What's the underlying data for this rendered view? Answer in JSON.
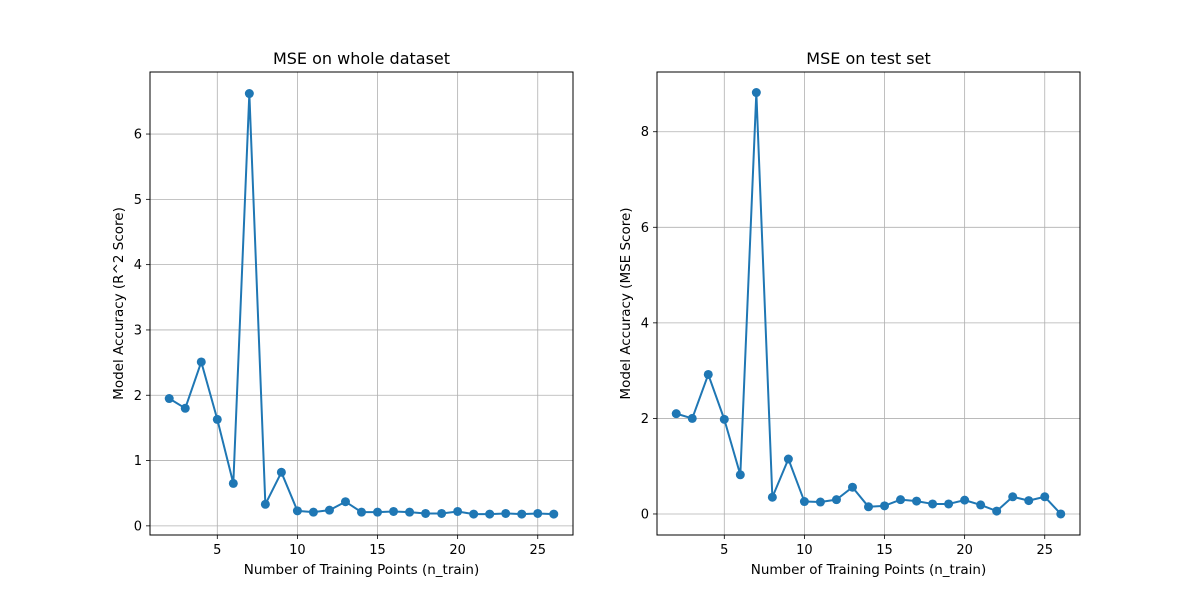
{
  "chart_data": [
    {
      "type": "line",
      "title": "MSE on whole dataset",
      "xlabel": "Number of Training Points (n_train)",
      "ylabel": "Model Accuracy (R^2 Score)",
      "xlim": [
        0.8,
        27.2
      ],
      "ylim": [
        -0.14,
        6.95
      ],
      "xticks": [
        5,
        10,
        15,
        20,
        25
      ],
      "yticks": [
        0,
        1,
        2,
        3,
        4,
        5,
        6
      ],
      "grid": true,
      "color": "#1f77b4",
      "x": [
        2,
        3,
        4,
        5,
        6,
        7,
        8,
        9,
        10,
        11,
        12,
        13,
        14,
        15,
        16,
        17,
        18,
        19,
        20,
        21,
        22,
        23,
        24,
        25,
        26
      ],
      "y": [
        1.95,
        1.8,
        2.51,
        1.63,
        0.65,
        6.62,
        0.33,
        0.82,
        0.23,
        0.21,
        0.24,
        0.37,
        0.21,
        0.21,
        0.22,
        0.21,
        0.19,
        0.19,
        0.22,
        0.18,
        0.18,
        0.19,
        0.18,
        0.19,
        0.18
      ]
    },
    {
      "type": "line",
      "title": "MSE on test set",
      "xlabel": "Number of Training Points (n_train)",
      "ylabel": "Model Accuracy (MSE Score)",
      "xlim": [
        0.8,
        27.2
      ],
      "ylim": [
        -0.44,
        9.25
      ],
      "xticks": [
        5,
        10,
        15,
        20,
        25
      ],
      "yticks": [
        0,
        2,
        4,
        6,
        8
      ],
      "grid": true,
      "color": "#1f77b4",
      "x": [
        2,
        3,
        4,
        5,
        6,
        7,
        8,
        9,
        10,
        11,
        12,
        13,
        14,
        15,
        16,
        17,
        18,
        19,
        20,
        21,
        22,
        23,
        24,
        25,
        26
      ],
      "y": [
        2.1,
        2.0,
        2.92,
        1.98,
        0.82,
        8.82,
        0.35,
        1.15,
        0.26,
        0.25,
        0.3,
        0.56,
        0.15,
        0.17,
        0.3,
        0.27,
        0.21,
        0.21,
        0.29,
        0.19,
        0.06,
        0.36,
        0.28,
        0.36,
        0.0
      ]
    }
  ]
}
